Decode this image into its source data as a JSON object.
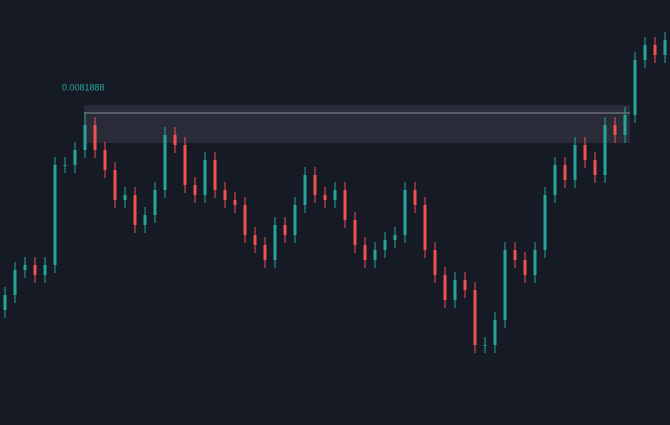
{
  "chart_data": {
    "type": "candlestick",
    "ylim": [
      0.0078768,
      0.0083018
    ],
    "up_color": "#26a69a",
    "down_color": "#ef5350",
    "level": {
      "value": 0.0081888,
      "label": "0.0081888"
    },
    "open": [
      0.0079918,
      0.0080068,
      0.0080318,
      0.0080368,
      0.0080268,
      0.0080368,
      0.0081368,
      0.0081368,
      0.0081518,
      0.0081768,
      0.0081518,
      0.0081318,
      0.0081018,
      0.0081068,
      0.0080768,
      0.0080868,
      0.0081118,
      0.0081668,
      0.0081568,
      0.0081168,
      0.0081068,
      0.0081418,
      0.0081118,
      0.0081018,
      0.0080968,
      0.0080668,
      0.0080568,
      0.0080418,
      0.0080768,
      0.0080668,
      0.0080968,
      0.0081268,
      0.0081068,
      0.0081018,
      0.0081118,
      0.0080818,
      0.0080568,
      0.0080418,
      0.0080518,
      0.0080618,
      0.0080668,
      0.0081118,
      0.0080968,
      0.0080518,
      0.0080268,
      0.0080018,
      0.0080218,
      0.0080118,
      0.0079568,
      0.0079568,
      0.0079818,
      0.0080518,
      0.0080418,
      0.0080268,
      0.0080518,
      0.0081068,
      0.0081368,
      0.0081218,
      0.0081568,
      0.0081418,
      0.0081268,
      0.0081768,
      0.0081668,
      0.0081868,
      0.0082418,
      0.0082568,
      0.0082468
    ],
    "high": [
      0.0080148,
      0.0080398,
      0.0080448,
      0.0080448,
      0.0080448,
      0.0081448,
      0.0081448,
      0.0081598,
      0.0081888,
      0.0081848,
      0.0081598,
      0.0081398,
      0.0081148,
      0.0081148,
      0.0080948,
      0.0081198,
      0.0081748,
      0.0081748,
      0.0081648,
      0.0081248,
      0.0081498,
      0.0081498,
      0.0081198,
      0.0081098,
      0.0081048,
      0.0080748,
      0.0080648,
      0.0080848,
      0.0080848,
      0.0081048,
      0.0081348,
      0.0081348,
      0.0081148,
      0.0081198,
      0.0081198,
      0.0080898,
      0.0080648,
      0.0080598,
      0.0080698,
      0.0080748,
      0.0081198,
      0.0081198,
      0.0081048,
      0.0080598,
      0.0080348,
      0.0080298,
      0.0080298,
      0.0080198,
      0.0079648,
      0.0079898,
      0.0080598,
      0.0080598,
      0.0080498,
      0.0080598,
      0.0081148,
      0.0081448,
      0.0081448,
      0.0081648,
      0.0081648,
      0.0081498,
      0.0081848,
      0.0081848,
      0.0081948,
      0.0082498,
      0.0082648,
      0.0082648,
      0.0082698
    ],
    "low": [
      0.0079838,
      0.0079988,
      0.0080238,
      0.0080188,
      0.0080188,
      0.0080288,
      0.0081288,
      0.0081288,
      0.0081438,
      0.0081438,
      0.0081238,
      0.0080938,
      0.0080938,
      0.0080688,
      0.0080688,
      0.0080788,
      0.0081038,
      0.0081488,
      0.0081088,
      0.0080988,
      0.0080988,
      0.0081038,
      0.0080938,
      0.0080888,
      0.0080588,
      0.0080488,
      0.0080338,
      0.0080338,
      0.0080588,
      0.0080588,
      0.0080888,
      0.0080988,
      0.0080938,
      0.0080938,
      0.0080738,
      0.0080488,
      0.0080338,
      0.0080338,
      0.0080438,
      0.0080538,
      0.0080588,
      0.0080888,
      0.0080438,
      0.0080188,
      0.0079938,
      0.0079938,
      0.0080038,
      0.0079488,
      0.0079488,
      0.0079488,
      0.0079738,
      0.0080338,
      0.0080188,
      0.0080188,
      0.0080438,
      0.0080988,
      0.0081138,
      0.0081138,
      0.0081338,
      0.0081188,
      0.0081188,
      0.0081588,
      0.0081588,
      0.0081788,
      0.0082338,
      0.0082388,
      0.0082388
    ],
    "close": [
      0.0080068,
      0.0080318,
      0.0080368,
      0.0080268,
      0.0080368,
      0.0081368,
      0.0081368,
      0.0081518,
      0.0081768,
      0.0081518,
      0.0081318,
      0.0081018,
      0.0081068,
      0.0080768,
      0.0080868,
      0.0081118,
      0.0081668,
      0.0081568,
      0.0081168,
      0.0081068,
      0.0081418,
      0.0081118,
      0.0081018,
      0.0080968,
      0.0080668,
      0.0080568,
      0.0080418,
      0.0080768,
      0.0080668,
      0.0080968,
      0.0081268,
      0.0081068,
      0.0081018,
      0.0081118,
      0.0080818,
      0.0080568,
      0.0080418,
      0.0080518,
      0.0080618,
      0.0080668,
      0.0081118,
      0.0080968,
      0.0080518,
      0.0080268,
      0.0080018,
      0.0080218,
      0.0080118,
      0.0079568,
      0.0079568,
      0.0079818,
      0.0080518,
      0.0080418,
      0.0080268,
      0.0080518,
      0.0081068,
      0.0081368,
      0.0081218,
      0.0081568,
      0.0081418,
      0.0081268,
      0.0081768,
      0.0081668,
      0.0081868,
      0.0082418,
      0.0082568,
      0.0082468,
      0.0082618
    ]
  }
}
